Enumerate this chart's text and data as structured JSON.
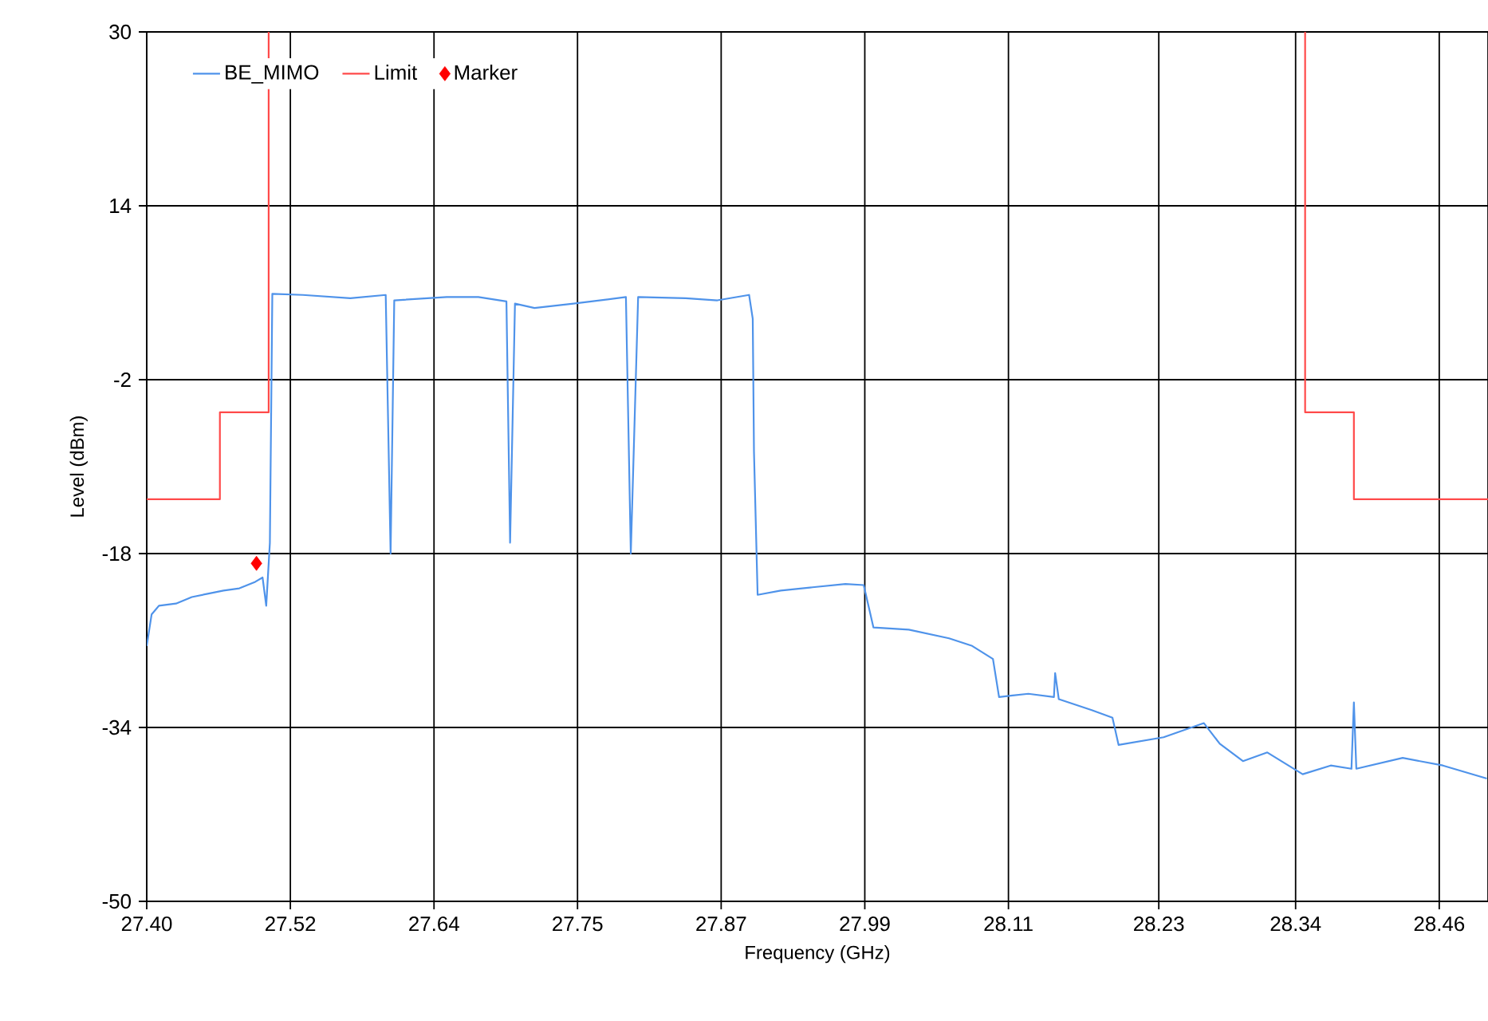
{
  "chart_data": {
    "type": "line",
    "xlabel": "Frequency (GHz)",
    "ylabel": "Level (dBm)",
    "xlim": [
      27.4,
      28.5
    ],
    "ylim": [
      -50,
      30
    ],
    "xticks": [
      {
        "value": 27.4,
        "label": "27.40"
      },
      {
        "value": 27.5178,
        "label": "27.52"
      },
      {
        "value": 27.6356,
        "label": "27.64"
      },
      {
        "value": 27.7533,
        "label": "27.75"
      },
      {
        "value": 27.8711,
        "label": "27.87"
      },
      {
        "value": 27.9889,
        "label": "27.99"
      },
      {
        "value": 28.1067,
        "label": "28.11"
      },
      {
        "value": 28.23,
        "label": "28.23"
      },
      {
        "value": 28.3422,
        "label": "28.34"
      },
      {
        "value": 28.46,
        "label": "28.46"
      }
    ],
    "yticks": [
      -50,
      -34,
      -18,
      -2,
      14,
      30
    ],
    "grid": true,
    "legend": "top left",
    "line_style": "solid",
    "series": [
      {
        "name": "BE_MIMO",
        "color": "#4f93ea",
        "x": [
          27.4,
          27.404,
          27.41,
          27.424,
          27.437,
          27.45,
          27.463,
          27.476,
          27.489,
          27.495,
          27.498,
          27.501,
          27.503,
          27.528,
          27.567,
          27.596,
          27.6,
          27.603,
          27.646,
          27.672,
          27.695,
          27.698,
          27.702,
          27.718,
          27.75,
          27.793,
          27.797,
          27.803,
          27.842,
          27.868,
          27.894,
          27.897,
          27.898,
          27.901,
          27.92,
          27.946,
          27.973,
          27.988,
          27.996,
          28.025,
          28.058,
          28.077,
          28.094,
          28.099,
          28.123,
          28.144,
          28.145,
          28.148,
          28.175,
          28.192,
          28.197,
          28.234,
          28.267,
          28.28,
          28.299,
          28.319,
          28.348,
          28.371,
          28.388,
          28.39,
          28.392,
          28.43,
          28.463,
          28.499
        ],
        "values": [
          -26.5,
          -23.6,
          -22.8,
          -22.6,
          -22.0,
          -21.7,
          -21.4,
          -21.2,
          -20.6,
          -20.2,
          -22.8,
          -17.0,
          5.9,
          5.8,
          5.5,
          5.8,
          -18.0,
          5.3,
          5.6,
          5.6,
          5.2,
          -17.0,
          5.0,
          4.6,
          5.0,
          5.6,
          -18.0,
          5.6,
          5.5,
          5.3,
          5.8,
          3.6,
          -8.6,
          -21.8,
          -21.4,
          -21.1,
          -20.8,
          -20.9,
          -24.8,
          -25.0,
          -25.8,
          -26.5,
          -27.7,
          -31.2,
          -30.9,
          -31.2,
          -29.0,
          -31.4,
          -32.4,
          -33.1,
          -35.6,
          -34.9,
          -33.6,
          -35.5,
          -37.1,
          -36.3,
          -38.3,
          -37.5,
          -37.8,
          -31.7,
          -37.8,
          -36.8,
          -37.5,
          -38.7
        ]
      },
      {
        "name": "Limit",
        "color": "#ff4a4a",
        "x": [
          27.4,
          27.46,
          27.46,
          27.5,
          27.5,
          27.9,
          28.35,
          28.35,
          28.39,
          28.39,
          28.5
        ],
        "values": [
          -13,
          -13,
          -5,
          -5,
          30,
          null,
          30,
          -5,
          -5,
          -13,
          -13
        ]
      },
      {
        "name": "Marker",
        "type": "scatter",
        "marker": "diamond",
        "color": "#ff0000",
        "x": [
          27.49
        ],
        "values": [
          -18.9
        ]
      }
    ]
  }
}
